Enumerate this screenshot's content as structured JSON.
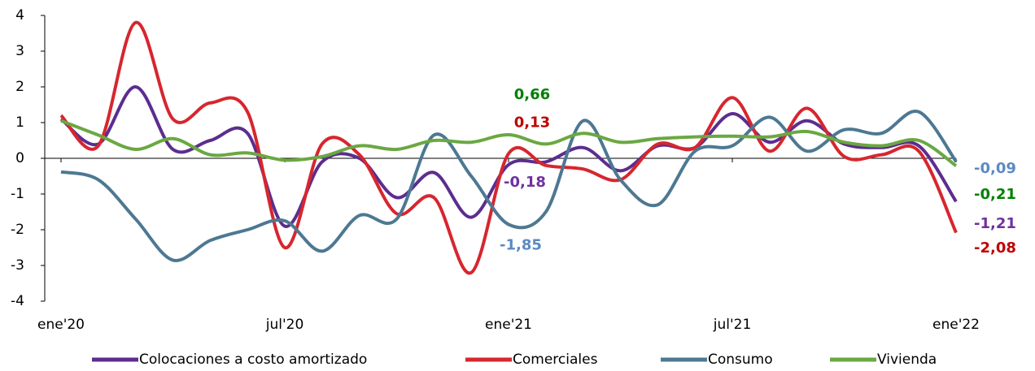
{
  "chart_data": {
    "type": "line",
    "categories": [
      "ene'20",
      null,
      null,
      null,
      null,
      null,
      "jul'20",
      null,
      null,
      null,
      null,
      null,
      "ene'21",
      null,
      null,
      null,
      null,
      null,
      "jul'21",
      null,
      null,
      null,
      null,
      null,
      "ene'22"
    ],
    "ylim": [
      -4,
      4
    ],
    "yticks": [
      -4,
      -3,
      -2,
      -1,
      0,
      1,
      2,
      3,
      4
    ],
    "series": [
      {
        "name": "Colocaciones a costo amortizado",
        "color": "#5c2d8f",
        "label_color": "#7030a0",
        "values": [
          1.1,
          0.4,
          2.0,
          0.25,
          0.5,
          0.7,
          -1.9,
          -0.1,
          0.0,
          -1.1,
          -0.4,
          -1.65,
          -0.18,
          -0.1,
          0.3,
          -0.35,
          0.35,
          0.3,
          1.25,
          0.45,
          1.05,
          0.4,
          0.3,
          0.35,
          -1.21
        ],
        "value_labels": [
          null,
          null,
          null,
          null,
          null,
          null,
          null,
          null,
          null,
          null,
          null,
          null,
          "-0,18",
          null,
          null,
          null,
          null,
          null,
          null,
          null,
          null,
          null,
          null,
          null,
          "-1,21"
        ]
      },
      {
        "name": "Comerciales",
        "color": "#d7262e",
        "label_color": "#c00000",
        "values": [
          1.2,
          0.35,
          3.8,
          1.1,
          1.55,
          1.3,
          -2.5,
          0.4,
          0.1,
          -1.55,
          -1.1,
          -3.2,
          0.13,
          -0.2,
          -0.3,
          -0.6,
          0.4,
          0.3,
          1.7,
          0.2,
          1.4,
          0.05,
          0.1,
          0.2,
          -2.08
        ],
        "value_labels": [
          null,
          null,
          null,
          null,
          null,
          null,
          null,
          null,
          null,
          null,
          null,
          null,
          "0,13",
          null,
          null,
          null,
          null,
          null,
          null,
          null,
          null,
          null,
          null,
          null,
          "-2,08"
        ]
      },
      {
        "name": "Consumo",
        "color": "#4d7892",
        "label_color": "#5b8ac4",
        "values": [
          -0.38,
          -0.6,
          -1.7,
          -2.85,
          -2.3,
          -2.0,
          -1.75,
          -2.6,
          -1.6,
          -1.7,
          0.65,
          -0.5,
          -1.85,
          -1.5,
          1.05,
          -0.6,
          -1.3,
          0.2,
          0.35,
          1.15,
          0.2,
          0.8,
          0.7,
          1.3,
          -0.09
        ],
        "value_labels": [
          null,
          null,
          null,
          null,
          null,
          null,
          null,
          null,
          null,
          null,
          null,
          null,
          "-1,85",
          null,
          null,
          null,
          null,
          null,
          null,
          null,
          null,
          null,
          null,
          null,
          "-0,09"
        ]
      },
      {
        "name": "Vivienda",
        "color": "#6aa842",
        "label_color": "#008000",
        "values": [
          1.05,
          0.65,
          0.25,
          0.55,
          0.1,
          0.15,
          -0.05,
          0.05,
          0.35,
          0.25,
          0.5,
          0.45,
          0.66,
          0.4,
          0.7,
          0.45,
          0.55,
          0.6,
          0.62,
          0.6,
          0.75,
          0.45,
          0.35,
          0.5,
          -0.21
        ],
        "value_labels": [
          null,
          null,
          null,
          null,
          null,
          null,
          null,
          null,
          null,
          null,
          null,
          null,
          "0,66",
          null,
          null,
          null,
          null,
          null,
          null,
          null,
          null,
          null,
          null,
          null,
          "-0,21"
        ]
      }
    ]
  }
}
